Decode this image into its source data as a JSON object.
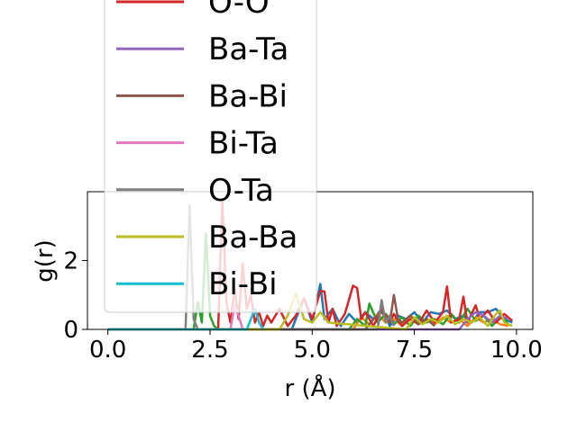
{
  "chart_data": {
    "type": "line",
    "title": "",
    "xlabel": "r (Å)",
    "ylabel": "g(r)",
    "xlim": [
      -0.5,
      10.4
    ],
    "ylim": [
      0,
      4.0
    ],
    "xticks": [
      0.0,
      2.5,
      5.0,
      7.5,
      10.0
    ],
    "xtick_labels": [
      "0.0",
      "2.5",
      "5.0",
      "7.5",
      "10.0"
    ],
    "yticks": [
      0,
      2
    ],
    "ytick_labels": [
      "0",
      "2"
    ],
    "grid": false,
    "legend_placement": "upper-left",
    "series": [
      {
        "name": "",
        "color": "#1f77b4",
        "x": [
          0,
          4.5,
          4.6,
          4.8,
          5.0,
          5.2,
          5.3,
          5.5,
          5.7,
          5.9,
          6.1,
          6.3,
          6.5,
          6.7,
          6.9,
          7.1,
          7.3,
          7.5,
          7.7,
          7.9,
          8.1,
          8.3,
          8.5,
          8.7,
          8.9,
          9.1,
          9.3,
          9.5,
          9.7,
          9.9
        ],
        "y": [
          0,
          0,
          0.3,
          0.9,
          0.2,
          1.32,
          0.3,
          0.6,
          0.1,
          0.45,
          0.2,
          0.5,
          0.3,
          0.6,
          0.1,
          0.4,
          0.3,
          0.5,
          0.2,
          0.5,
          0.45,
          0.55,
          0.3,
          0.4,
          0.2,
          0.5,
          0.5,
          0.6,
          0.3,
          0.2
        ]
      },
      {
        "name": "",
        "color": "#ff7f0e",
        "x": [
          0,
          6.0,
          6.2,
          6.4,
          6.6,
          6.8,
          7.0,
          7.2,
          7.4,
          7.6,
          7.8,
          8.0,
          8.2,
          8.4,
          8.6,
          8.8,
          9.0,
          9.2,
          9.4,
          9.6,
          9.8
        ],
        "y": [
          0,
          0,
          0.35,
          0.15,
          0.45,
          0.2,
          0.3,
          0.1,
          0.4,
          0.2,
          0.3,
          0.15,
          0.35,
          0.2,
          0.3,
          0.1,
          0.35,
          0.2,
          0.3,
          0.15,
          0.1
        ]
      },
      {
        "name": "",
        "color": "#2ca02c",
        "x": [
          0,
          2.1,
          2.2,
          2.3,
          2.4,
          2.5,
          2.6,
          2.7,
          5.9,
          6.1,
          6.3,
          6.4,
          6.6,
          6.8,
          7.0,
          7.2,
          7.4,
          7.6,
          7.8,
          8.0,
          8.2,
          8.4,
          8.6,
          8.8,
          9.0,
          9.2,
          9.4,
          9.6,
          9.8
        ],
        "y": [
          0,
          0,
          0.8,
          0.2,
          2.8,
          0.4,
          0.1,
          0,
          0,
          0.3,
          0.1,
          0.75,
          0.2,
          0.45,
          0.15,
          0.35,
          0.1,
          0.4,
          0.2,
          0.3,
          0.15,
          0.45,
          0.2,
          0.6,
          0.25,
          0.4,
          0.1,
          0.35,
          0.2
        ]
      },
      {
        "name": "O-O",
        "color": "#d62728",
        "x": [
          0,
          2.7,
          2.8,
          2.9,
          3.0,
          3.1,
          3.2,
          3.3,
          3.4,
          3.5,
          3.6,
          3.7,
          3.8,
          3.9,
          4.0,
          4.2,
          4.4,
          4.6,
          4.8,
          5.0,
          5.2,
          5.3,
          5.4,
          5.5,
          5.6,
          5.8,
          6.0,
          6.1,
          6.2,
          6.3,
          6.5,
          6.7,
          6.9,
          7.0,
          7.2,
          7.4,
          7.6,
          7.8,
          8.0,
          8.2,
          8.3,
          8.4,
          8.6,
          8.7,
          8.8,
          9.0,
          9.1,
          9.3,
          9.5,
          9.7,
          9.9
        ],
        "y": [
          0,
          0,
          3.75,
          0.8,
          0.2,
          1.2,
          0.3,
          1.9,
          0.6,
          1.0,
          0.2,
          0.5,
          0.1,
          0.4,
          0.2,
          0.6,
          0.1,
          0.4,
          0.9,
          0.3,
          1.12,
          1.1,
          0.2,
          0.6,
          0.1,
          0.45,
          1.27,
          1.2,
          0.3,
          0.5,
          0.1,
          0.6,
          0.2,
          0.45,
          0.1,
          0.3,
          0.15,
          0.55,
          0.2,
          0.5,
          1.25,
          0.2,
          0.3,
          0.95,
          0.2,
          0.7,
          0.3,
          0.55,
          0.2,
          0.45,
          0.25
        ]
      },
      {
        "name": "Ba-Ta",
        "color": "#9467bd",
        "x": [
          0,
          8.6,
          8.8,
          9.0,
          9.2,
          9.4,
          9.6,
          9.8
        ],
        "y": [
          0,
          0,
          0.3,
          0.5,
          0.4,
          0.2,
          0.4,
          0.3
        ]
      },
      {
        "name": "Ba-Bi",
        "color": "#8c564b",
        "x": [
          0,
          6.3,
          6.5,
          6.7,
          6.9,
          7.0,
          7.1,
          7.2,
          7.4,
          7.6,
          7.8,
          8.0
        ],
        "y": [
          0,
          0,
          0.3,
          0.5,
          0.2,
          1.0,
          0.3,
          0.2,
          0.4,
          0.15,
          0.3,
          0.1
        ]
      },
      {
        "name": "Bi-Ta",
        "color": "#e377c2",
        "x": [
          0,
          3.0,
          3.1,
          3.2,
          3.3
        ],
        "y": [
          0,
          0,
          0.7,
          0.4,
          0
        ]
      },
      {
        "name": "O-Ta",
        "color": "#7f7f7f",
        "x": [
          0,
          1.9,
          2.0,
          2.1,
          2.2,
          2.3,
          6.6,
          6.7,
          6.8,
          6.9,
          7.0
        ],
        "y": [
          0,
          0,
          3.6,
          0.3,
          0,
          0,
          0,
          0.85,
          0.2,
          0.4,
          0.1
        ]
      },
      {
        "name": "Ba-Ba",
        "color": "#bcbd22",
        "x": [
          0,
          4.2,
          4.4,
          4.6,
          4.8,
          5.0,
          5.2,
          5.4,
          7.3,
          7.5,
          7.7,
          7.9,
          8.1,
          8.3,
          8.5,
          8.7,
          8.9,
          9.1,
          9.3,
          9.5,
          9.6,
          9.7,
          9.9
        ],
        "y": [
          0,
          0,
          0.4,
          1.05,
          0.3,
          0.2,
          0.5,
          0.2,
          0,
          0.35,
          0.15,
          0.3,
          0.2,
          0.4,
          0.15,
          0.3,
          0.2,
          0.35,
          0.1,
          0.45,
          0.55,
          0.2,
          0.1
        ]
      },
      {
        "name": "Bi-Bi",
        "color": "#17becf",
        "x": [
          0,
          3.4,
          3.5,
          3.6,
          3.7,
          3.8
        ],
        "y": [
          0,
          0,
          0.3,
          0.6,
          0.2,
          0
        ]
      }
    ]
  }
}
